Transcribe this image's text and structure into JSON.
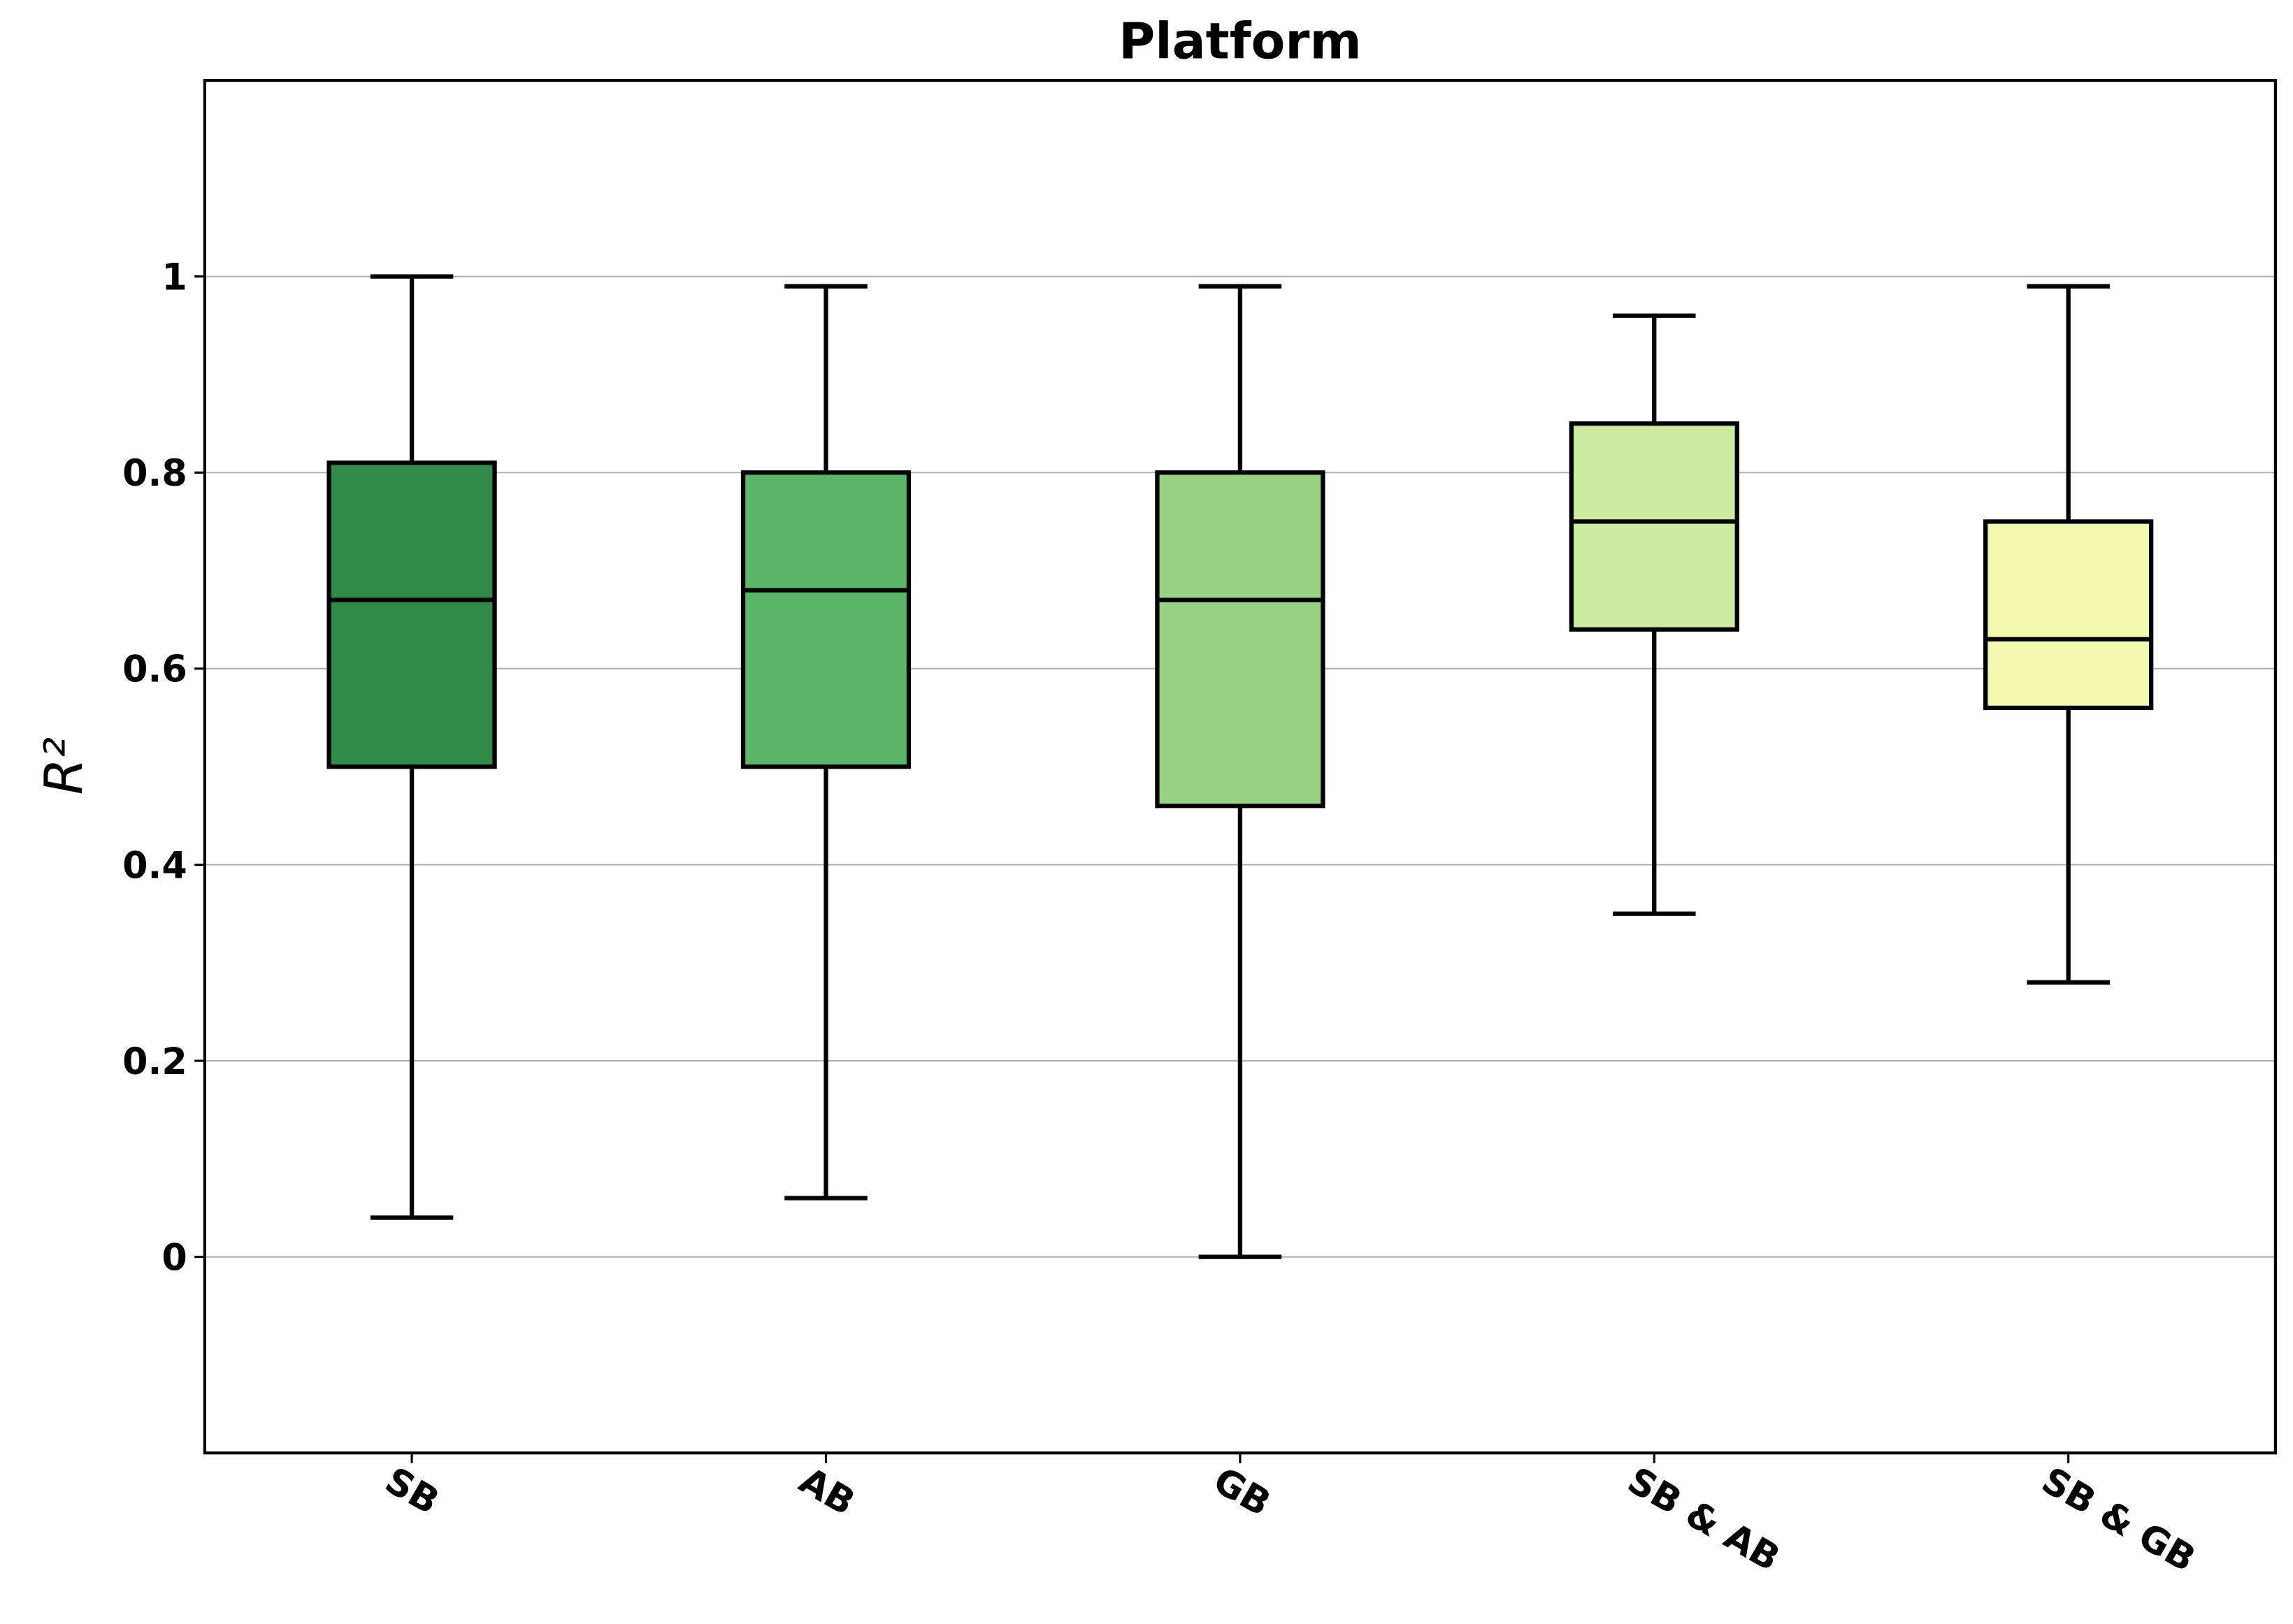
{
  "chart_data": {
    "type": "box",
    "title": "Platform",
    "ylabel": "R²",
    "categories": [
      "SB",
      "AB",
      "GB",
      "SB & AB",
      "SB & GB"
    ],
    "colors": [
      "#2e8b4a",
      "#5bb56a",
      "#98d384",
      "#cdeb9e",
      "#f2f8b0"
    ],
    "boxes": [
      {
        "low": 0.04,
        "q1": 0.5,
        "median": 0.67,
        "q3": 0.81,
        "high": 1.0
      },
      {
        "low": 0.06,
        "q1": 0.5,
        "median": 0.68,
        "q3": 0.8,
        "high": 0.99
      },
      {
        "low": 0.0,
        "q1": 0.46,
        "median": 0.67,
        "q3": 0.8,
        "high": 0.99
      },
      {
        "low": 0.35,
        "q1": 0.64,
        "median": 0.75,
        "q3": 0.85,
        "high": 0.96
      },
      {
        "low": 0.28,
        "q1": 0.56,
        "median": 0.63,
        "q3": 0.75,
        "high": 0.99
      }
    ],
    "ylim": [
      -0.2,
      1.2
    ],
    "yticks": [
      0,
      0.2,
      0.4,
      0.6,
      0.8,
      1
    ],
    "grid": true
  }
}
